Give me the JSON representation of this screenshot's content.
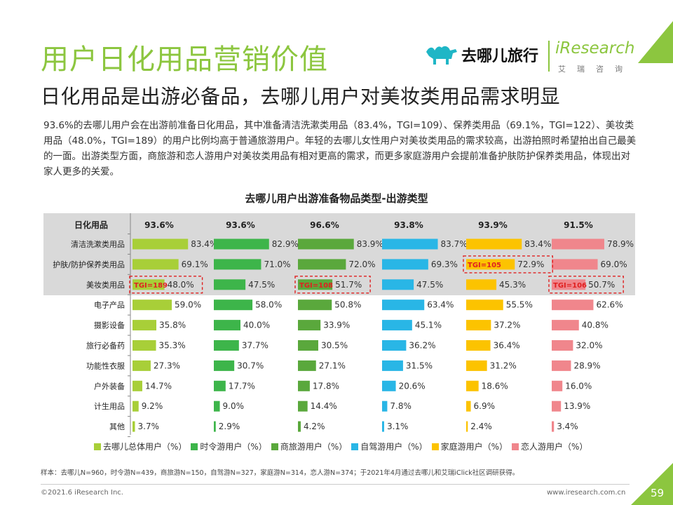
{
  "header": {
    "title": "用户日化用品营销价值",
    "subtitle": "日化用品是出游必备品，去哪儿用户对美妆类用品需求明显",
    "description": "93.6%的去哪儿用户会在出游前准备日化用品，其中准备清洁洗漱类用品（83.4%，TGI=109）、保养类用品（69.1%，TGI=122）、美妆类用品（48.0%，TGI=189）的用户比例均高于普通旅游用户。年轻的去哪儿女性用户对美妆类用品的需求较高，出游拍照时希望拍出自己最美的一面。出游类型方面，商旅游和恋人游用户对美妆类用品有相对更高的需求，而更多家庭游用户会提前准备护肤防护保养类用品，体现出对家人更多的关爱。"
  },
  "logos": {
    "qunar_name": "去哪儿旅行",
    "iresearch_name": "iResearch",
    "iresearch_cn": "艾瑞咨询"
  },
  "chart_data": {
    "type": "bar",
    "title": "去哪儿用户出游准备物品类型-出游类型",
    "header_label": "日化用品",
    "header_values": [
      "93.6%",
      "93.6%",
      "96.6%",
      "93.8%",
      "93.9%",
      "91.5%"
    ],
    "categories": [
      "清洁洗漱类用品",
      "护肤/防护保养类用品",
      "美妆类用品",
      "电子产品",
      "摄影设备",
      "旅行必备药",
      "功能性衣服",
      "户外装备",
      "计生用品",
      "其他"
    ],
    "xlim": [
      0,
      100
    ],
    "series": [
      {
        "name": "去哪儿总体用户（%）",
        "color": "#a8cf38",
        "values": [
          83.4,
          69.1,
          48.0,
          59.0,
          35.8,
          35.3,
          27.3,
          14.7,
          9.2,
          3.7
        ]
      },
      {
        "name": "时令游用户（%）",
        "color": "#3db54a",
        "values": [
          82.9,
          71.0,
          47.5,
          58.0,
          40.0,
          37.7,
          30.7,
          17.7,
          9.0,
          2.9
        ]
      },
      {
        "name": "商旅游用户（%）",
        "color": "#5aa83c",
        "values": [
          83.9,
          72.0,
          51.7,
          50.8,
          33.9,
          30.5,
          27.1,
          17.8,
          14.4,
          4.2
        ]
      },
      {
        "name": "自驾游用户（%）",
        "color": "#29b6e6",
        "values": [
          83.7,
          69.3,
          47.5,
          63.4,
          45.1,
          36.2,
          31.5,
          20.6,
          7.8,
          3.1
        ]
      },
      {
        "name": "家庭游用户（%）",
        "color": "#fcc300",
        "values": [
          83.4,
          72.9,
          45.3,
          55.5,
          37.2,
          36.4,
          31.2,
          18.6,
          6.9,
          2.4
        ]
      },
      {
        "name": "恋人游用户（%）",
        "color": "#f0868c",
        "values": [
          78.9,
          69.0,
          50.7,
          62.6,
          40.8,
          32.0,
          28.9,
          16.0,
          13.9,
          3.4
        ]
      }
    ],
    "value_labels": [
      [
        "83.4%",
        "69.1%",
        "48.0%",
        "59.0%",
        "35.8%",
        "35.3%",
        "27.3%",
        "14.7%",
        "9.2%",
        "3.7%"
      ],
      [
        "82.9%",
        "71.0%",
        "47.5%",
        "58.0%",
        "40.0%",
        "37.7%",
        "30.7%",
        "17.7%",
        "9.0%",
        "2.9%"
      ],
      [
        "83.9%",
        "72.0%",
        "51.7%",
        "50.8%",
        "33.9%",
        "30.5%",
        "27.1%",
        "17.8%",
        "14.4%",
        "4.2%"
      ],
      [
        "83.7%",
        "69.3%",
        "47.5%",
        "63.4%",
        "45.1%",
        "36.2%",
        "31.5%",
        "20.6%",
        "7.8%",
        "3.1%"
      ],
      [
        "83.4%",
        "72.9%",
        "45.3%",
        "55.5%",
        "37.2%",
        "36.4%",
        "31.2%",
        "18.6%",
        "6.9%",
        "2.4%"
      ],
      [
        "78.9%",
        "69.0%",
        "50.7%",
        "62.6%",
        "40.8%",
        "32.0%",
        "28.9%",
        "16.0%",
        "13.9%",
        "3.4%"
      ]
    ],
    "annotations": [
      {
        "series": 0,
        "category": 2,
        "text": "TGI=189"
      },
      {
        "series": 2,
        "category": 2,
        "text": "TGI=108"
      },
      {
        "series": 4,
        "category": 1,
        "text": "TGI=105"
      },
      {
        "series": 5,
        "category": 2,
        "text": "TGI=106"
      }
    ],
    "highlight_color": "#e02020",
    "header_band_color": "#d9d9d9"
  },
  "footer": {
    "sample": "样本：去哪儿N=960，时令游N=439，商旅游N=150，自驾游N=327，家庭游N=314，恋人游N=374；于2021年4月通过去哪儿和艾瑞iClick社区调研获得。",
    "copyright": "©2021.6 iResearch Inc.",
    "website": "www.iresearch.com.cn",
    "page": "59"
  },
  "colors": {
    "accent": "#8cc63f"
  }
}
